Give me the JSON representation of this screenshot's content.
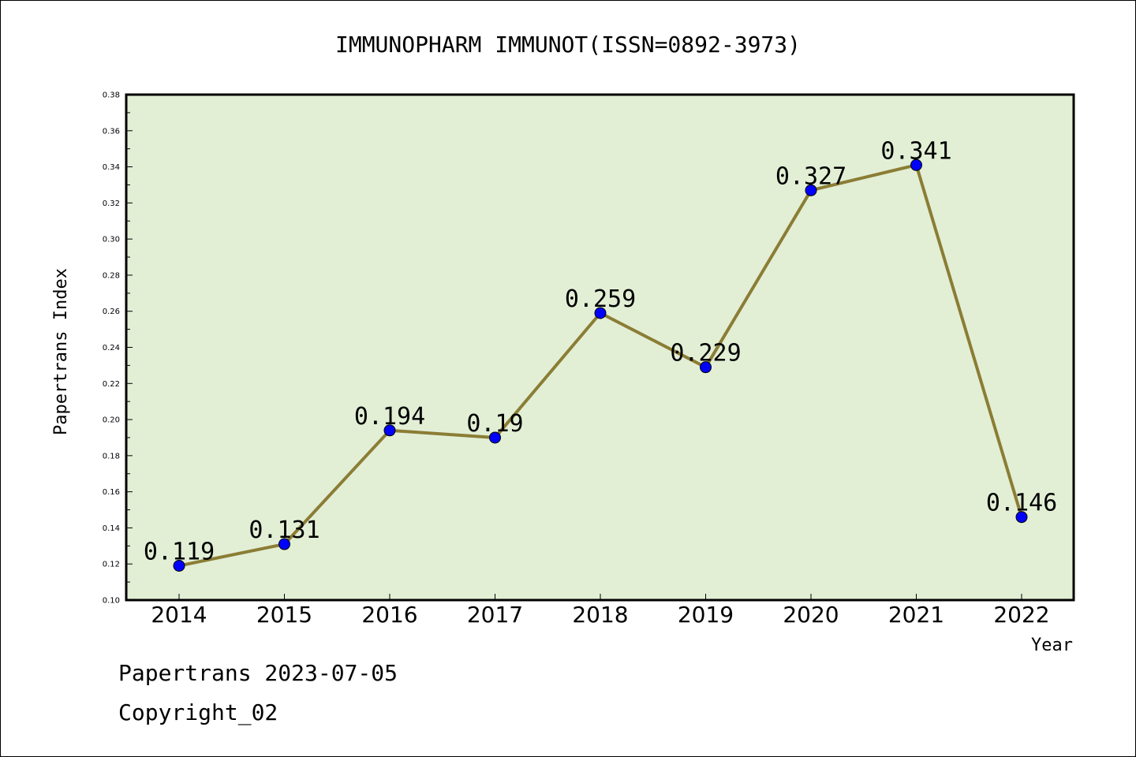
{
  "chart_data": {
    "type": "line",
    "title": "IMMUNOPHARM IMMUNOT(ISSN=0892-3973)",
    "xlabel": "Year",
    "ylabel": "Papertrans Index",
    "categories": [
      "2014",
      "2015",
      "2016",
      "2017",
      "2018",
      "2019",
      "2020",
      "2021",
      "2022"
    ],
    "values": [
      0.119,
      0.131,
      0.194,
      0.19,
      0.259,
      0.229,
      0.327,
      0.341,
      0.146
    ],
    "data_labels": [
      "0.119",
      "0.131",
      "0.194",
      "0.19",
      "0.259",
      "0.229",
      "0.327",
      "0.341",
      "0.146"
    ],
    "ylim": [
      0.1,
      0.38
    ],
    "yticks": [
      "0.10",
      "0.12",
      "0.14",
      "0.16",
      "0.18",
      "0.20",
      "0.22",
      "0.24",
      "0.26",
      "0.28",
      "0.30",
      "0.32",
      "0.34",
      "0.36",
      "0.38"
    ],
    "grid": false,
    "legend": "none",
    "colors": {
      "plot_background": "#e2efd5",
      "line": "#8b7d35",
      "marker": "#0000ff"
    }
  },
  "footer": {
    "line1": "Papertrans 2023-07-05",
    "line2": "Copyright_02"
  }
}
